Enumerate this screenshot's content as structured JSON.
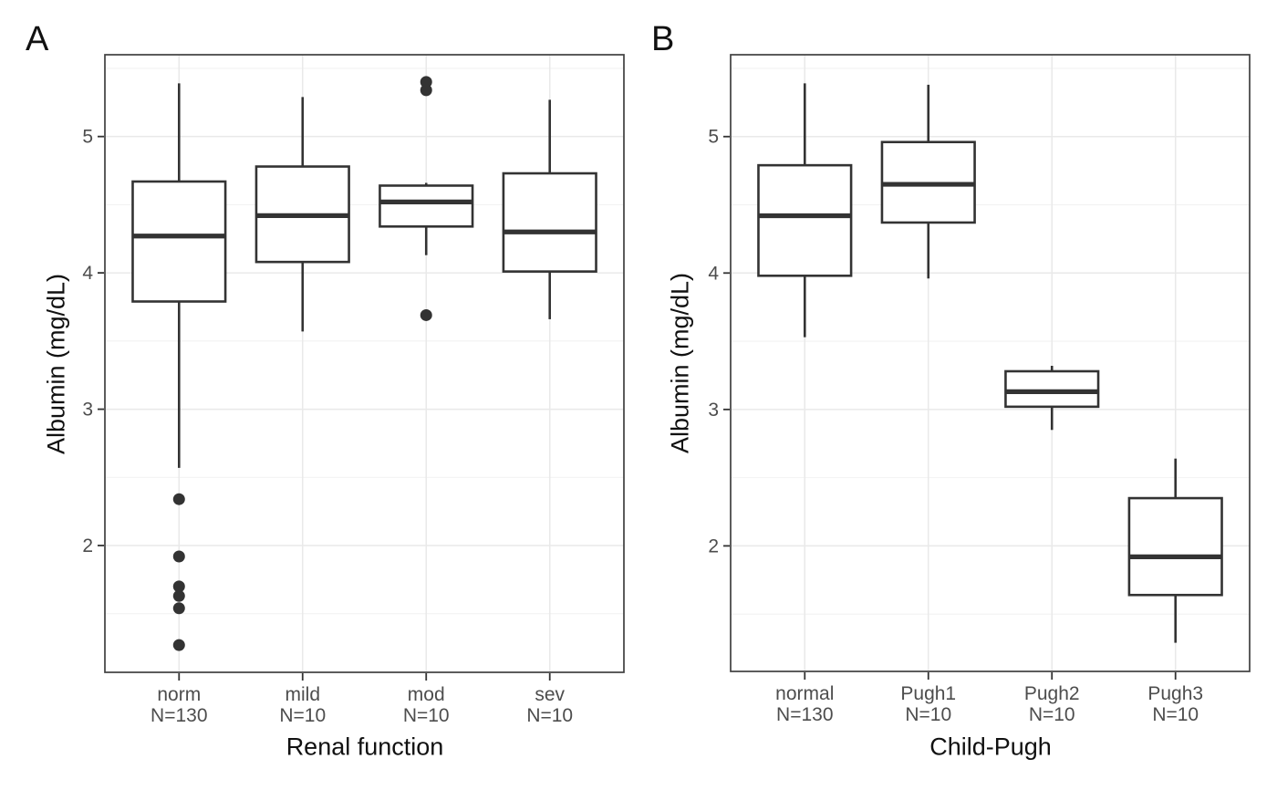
{
  "style": {
    "background": "#ffffff",
    "box_stroke": "#333333",
    "box_fill": "#ffffff",
    "outlier_fill": "#333333",
    "panel_border": "#404040",
    "grid_major": "#e9e9e9",
    "grid_minor": "#f2f2f2",
    "tick_mark": "#333333",
    "tick_label_color": "#4d4d4d",
    "axis_title_color": "#111111"
  },
  "chart_data": [
    {
      "type": "boxplot",
      "tag": "A",
      "xlabel": "Renal function",
      "ylabel": "Albumin (mg/dL)",
      "ylim": [
        1.07,
        5.6
      ],
      "yticks": [
        2,
        3,
        4,
        5
      ],
      "ytick_labels": [
        "2",
        "3",
        "4",
        "5"
      ],
      "yticks_minor": [
        1.5,
        2.5,
        3.5,
        4.5,
        5.5
      ],
      "grid": true,
      "legend": false,
      "categories": [
        {
          "label": "norm",
          "sublabel": "N=130",
          "n": 130,
          "whisker_low": 2.57,
          "q1": 3.79,
          "median": 4.27,
          "q3": 4.67,
          "whisker_high": 5.39,
          "outliers": [
            2.34,
            1.92,
            1.7,
            1.63,
            1.54,
            1.27
          ]
        },
        {
          "label": "mild",
          "sublabel": "N=10",
          "n": 10,
          "whisker_low": 3.57,
          "q1": 4.08,
          "median": 4.42,
          "q3": 4.78,
          "whisker_high": 5.29,
          "outliers": []
        },
        {
          "label": "mod",
          "sublabel": "N=10",
          "n": 10,
          "whisker_low": 4.13,
          "q1": 4.34,
          "median": 4.52,
          "q3": 4.64,
          "whisker_high": 4.66,
          "outliers": [
            5.4,
            5.34,
            3.69
          ]
        },
        {
          "label": "sev",
          "sublabel": "N=10",
          "n": 10,
          "whisker_low": 3.66,
          "q1": 4.01,
          "median": 4.3,
          "q3": 4.73,
          "whisker_high": 5.27,
          "outliers": []
        }
      ]
    },
    {
      "type": "boxplot",
      "tag": "B",
      "xlabel": "Child-Pugh",
      "ylabel": "Albumin (mg/dL)",
      "ylim": [
        1.08,
        5.6
      ],
      "yticks": [
        2,
        3,
        4,
        5
      ],
      "ytick_labels": [
        "2",
        "3",
        "4",
        "5"
      ],
      "yticks_minor": [
        1.5,
        2.5,
        3.5,
        4.5,
        5.5
      ],
      "grid": true,
      "legend": false,
      "categories": [
        {
          "label": "normal",
          "sublabel": "N=130",
          "n": 130,
          "whisker_low": 3.53,
          "q1": 3.98,
          "median": 4.42,
          "q3": 4.79,
          "whisker_high": 5.39,
          "outliers": []
        },
        {
          "label": "Pugh1",
          "sublabel": "N=10",
          "n": 10,
          "whisker_low": 3.96,
          "q1": 4.37,
          "median": 4.65,
          "q3": 4.96,
          "whisker_high": 5.38,
          "outliers": []
        },
        {
          "label": "Pugh2",
          "sublabel": "N=10",
          "n": 10,
          "whisker_low": 2.85,
          "q1": 3.02,
          "median": 3.13,
          "q3": 3.28,
          "whisker_high": 3.32,
          "outliers": []
        },
        {
          "label": "Pugh3",
          "sublabel": "N=10",
          "n": 10,
          "whisker_low": 1.29,
          "q1": 1.64,
          "median": 1.92,
          "q3": 2.35,
          "whisker_high": 2.64,
          "outliers": []
        }
      ]
    }
  ]
}
